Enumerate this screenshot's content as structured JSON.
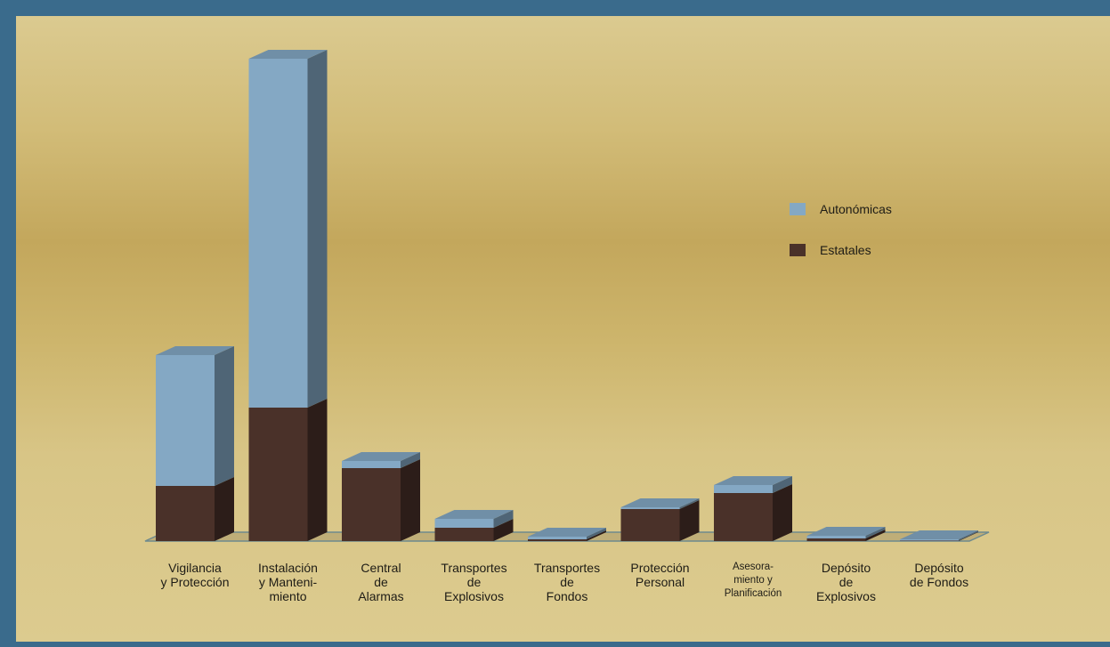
{
  "chart_data": {
    "type": "bar",
    "stacked": true,
    "three_d": true,
    "categories": [
      "Vigilancia\ny Protección",
      "Instalación\ny Manteni-\nmiento",
      "Central\nde\nAlarmas",
      "Transportes\nde\nExplosivos",
      "Transportes\nde\nFondos",
      "Protección\nPersonal",
      "Asesora-\nmiento y\nPlanificación",
      "Depósito\nde\nExplosivos",
      "Depósito\nde Fondos"
    ],
    "series": [
      {
        "name": "Estatales",
        "color": "#4a3129",
        "values": [
          62,
          150,
          82,
          15,
          2,
          36,
          54,
          3,
          0.5
        ]
      },
      {
        "name": "Autonómicas",
        "color": "#84a8c4",
        "values": [
          147,
          392,
          8,
          10,
          3,
          2,
          9,
          3,
          1.5
        ]
      }
    ],
    "legend_position": "right",
    "grid": false,
    "ylim": [
      0,
      560
    ]
  }
}
